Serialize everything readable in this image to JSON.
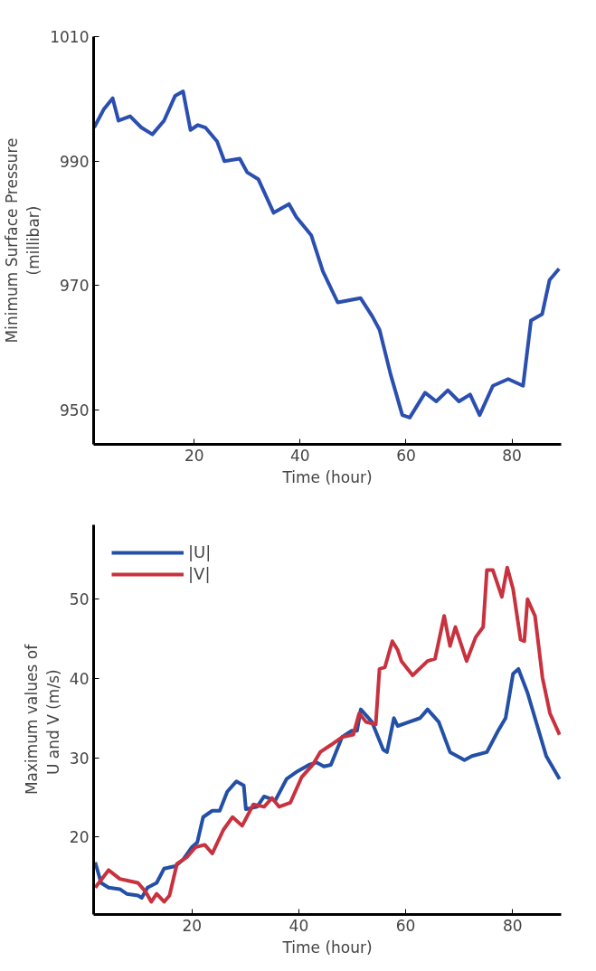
{
  "chart_data": [
    {
      "type": "line",
      "xlabel": "Time (hour)",
      "ylabel": "Minimum Surface Pressure\n(millibar)",
      "xlim": [
        1,
        89.3
      ],
      "ylim": [
        944.5,
        1010
      ],
      "xticks": [
        20,
        40,
        60,
        80
      ],
      "yticks": [
        950,
        970,
        990,
        1010
      ],
      "grid": false,
      "legend": false,
      "series": [
        {
          "color": "#2b4fb0",
          "x": [
            1.1,
            2.9,
            4.6,
            5.7,
            7.9,
            10,
            12.1,
            14.3,
            16.4,
            17.9,
            19.3,
            20.7,
            22.1,
            24.3,
            25.7,
            28.6,
            30,
            32.1,
            35,
            37.9,
            39.3,
            42.1,
            44.3,
            47.1,
            51.4,
            53.6,
            55,
            57.1,
            59.3,
            60.7,
            63.6,
            65.7,
            67.9,
            70,
            72.1,
            73.9,
            76.4,
            79.3,
            82.1,
            83.6,
            85.7,
            87.1,
            88.9
          ],
          "values": [
            995.4,
            998.3,
            1000.1,
            996.5,
            997.2,
            995.4,
            994.3,
            996.5,
            1000.5,
            1001.2,
            995,
            995.8,
            995.4,
            993.2,
            990,
            990.4,
            988.2,
            987.1,
            981.7,
            983.1,
            981,
            978.1,
            972.3,
            967.3,
            968,
            965.1,
            962.9,
            955.7,
            949.2,
            948.8,
            952.8,
            951.4,
            953.2,
            951.4,
            952.5,
            949.2,
            953.9,
            955,
            953.9,
            964.4,
            965.4,
            970.9,
            972.7
          ]
        }
      ]
    },
    {
      "type": "line",
      "xlabel": "Time (hour)",
      "ylabel": "Maximum values of\nU and V  (m/s)",
      "xlim": [
        1.6,
        89.1
      ],
      "ylim": [
        10.2,
        59.4
      ],
      "xticks": [
        20,
        40,
        60,
        80
      ],
      "yticks": [
        20,
        30,
        40,
        50
      ],
      "grid": false,
      "legend": "top left",
      "series": [
        {
          "name": "|U|",
          "color": "#2350a6",
          "x": [
            1.9,
            3,
            4.4,
            6.5,
            7.8,
            9.9,
            10.6,
            11.7,
            13.4,
            14.8,
            16.9,
            18.3,
            20,
            21,
            22.1,
            23.8,
            25.2,
            26.6,
            28.3,
            29.7,
            30.1,
            32.2,
            33.5,
            35.6,
            37.7,
            39.8,
            41.9,
            43.3,
            44.7,
            46,
            48.1,
            49.9,
            50.9,
            51.6,
            53.7,
            55.8,
            56.5,
            57.8,
            58.5,
            60.6,
            62.7,
            64.1,
            66.2,
            68.3,
            71,
            72.4,
            75.2,
            77.3,
            78.7,
            80.1,
            81.1,
            82.8,
            84.9,
            86.3,
            88.8
          ],
          "values": [
            16.8,
            14.2,
            13.6,
            13.4,
            12.8,
            12.6,
            12.3,
            13.6,
            14.2,
            16,
            16.3,
            17.1,
            18.7,
            19.3,
            22.5,
            23.3,
            23.3,
            25.7,
            27,
            26.5,
            23.5,
            23.8,
            25.1,
            24.6,
            27.3,
            28.3,
            29.1,
            29.4,
            28.9,
            29.1,
            32.6,
            33.4,
            33.4,
            36.1,
            34.5,
            31,
            30.7,
            35,
            34,
            34.5,
            35,
            36.1,
            34.5,
            30.7,
            29.7,
            30.2,
            30.7,
            33.4,
            35,
            40.6,
            41.2,
            38.2,
            33.4,
            30.2,
            27.3
          ]
        },
        {
          "name": "|V|",
          "color": "#c8323f",
          "x": [
            1.9,
            4.4,
            6.5,
            8.5,
            9.9,
            11.3,
            12.4,
            13.4,
            14.8,
            15.8,
            17.2,
            19,
            20.7,
            22.4,
            23.8,
            25.9,
            27.6,
            29.4,
            31.5,
            33.5,
            35,
            36.3,
            38.4,
            40.5,
            42.6,
            44,
            46,
            48.1,
            50.2,
            51.3,
            52.6,
            54.4,
            55.1,
            56.1,
            57.5,
            58.5,
            59.2,
            61.3,
            64.1,
            65.5,
            67.2,
            68.3,
            69.3,
            71.4,
            73.1,
            74.5,
            75.2,
            76.3,
            78,
            79,
            80.1,
            81.5,
            82.2,
            82.8,
            84.2,
            85.6,
            87,
            88.8
          ],
          "values": [
            13.6,
            15.8,
            14.7,
            14.4,
            14.2,
            13.1,
            11.8,
            12.8,
            11.8,
            12.6,
            16.6,
            17.4,
            18.7,
            19,
            17.9,
            20.9,
            22.5,
            21.4,
            24.1,
            23.8,
            24.9,
            23.8,
            24.3,
            27.5,
            29.1,
            30.7,
            31.6,
            32.6,
            32.9,
            35.6,
            34.5,
            34.2,
            41.2,
            41.4,
            44.7,
            43.6,
            42.2,
            40.4,
            42.2,
            42.5,
            47.9,
            44.1,
            46.5,
            42.2,
            45.2,
            46.5,
            53.7,
            53.7,
            50.3,
            54,
            51.3,
            44.9,
            44.7,
            50,
            47.9,
            40.1,
            35.6,
            32.9
          ]
        }
      ]
    }
  ]
}
